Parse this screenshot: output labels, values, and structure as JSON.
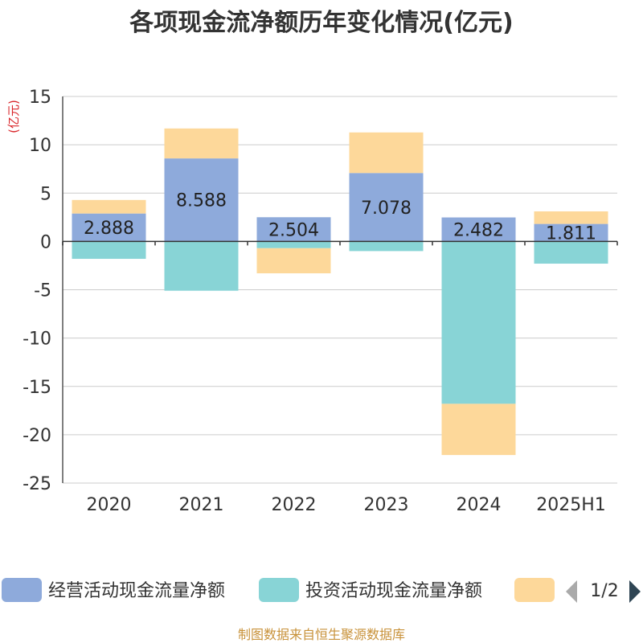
{
  "chart_data": {
    "type": "bar",
    "stacked": true,
    "title": "各项现金流净额历年变化情况(亿元)",
    "y_unit": "(亿元)",
    "categories": [
      "2020",
      "2021",
      "2022",
      "2023",
      "2024",
      "2025H1"
    ],
    "ylim": [
      -25,
      15
    ],
    "yticks": [
      15,
      10,
      5,
      0,
      -5,
      -10,
      -15,
      -20,
      -25
    ],
    "grid": true,
    "legend_position": "bottom",
    "series": [
      {
        "name": "经营活动现金流量净额",
        "color": "#8eaadb",
        "values": [
          2.888,
          8.588,
          2.504,
          7.078,
          2.482,
          1.811
        ],
        "labels": [
          "2.888",
          "8.588",
          "2.504",
          "7.078",
          "2.482",
          "1.811"
        ]
      },
      {
        "name": "投资活动现金流量净额",
        "color": "#88d4d6",
        "values": [
          -1.8,
          -5.1,
          -0.7,
          -1.0,
          -16.8,
          -2.3
        ]
      },
      {
        "name": "",
        "color": "#fdd89a",
        "values": [
          1.4,
          3.1,
          -2.6,
          4.2,
          -5.3,
          1.3
        ]
      }
    ],
    "legend_page": "1/2"
  },
  "source": "制图数据来自恒生聚源数据库"
}
